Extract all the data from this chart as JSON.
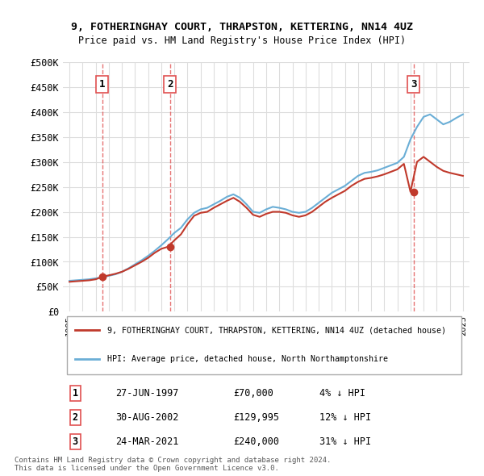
{
  "title": "9, FOTHERINGHAY COURT, THRAPSTON, KETTERING, NN14 4UZ",
  "subtitle": "Price paid vs. HM Land Registry's House Price Index (HPI)",
  "ylabel": "",
  "ylim": [
    0,
    500000
  ],
  "yticks": [
    0,
    50000,
    100000,
    150000,
    200000,
    250000,
    300000,
    350000,
    400000,
    450000,
    500000
  ],
  "ytick_labels": [
    "£0",
    "£50K",
    "£100K",
    "£150K",
    "£200K",
    "£250K",
    "£300K",
    "£350K",
    "£400K",
    "£450K",
    "£500K"
  ],
  "xlim_start": 1994.5,
  "xlim_end": 2025.5,
  "hpi_color": "#6aaed6",
  "price_color": "#c0392b",
  "sale_marker_color": "#c0392b",
  "vline_color": "#e05050",
  "bg_color": "#ffffff",
  "grid_color": "#dddddd",
  "sales": [
    {
      "num": 1,
      "year": 1997.49,
      "price": 70000,
      "label": "27-JUN-1997",
      "price_label": "£70,000",
      "hpi_label": "4% ↓ HPI"
    },
    {
      "num": 2,
      "year": 2002.66,
      "price": 129995,
      "label": "30-AUG-2002",
      "price_label": "£129,995",
      "hpi_label": "12% ↓ HPI"
    },
    {
      "num": 3,
      "year": 2021.23,
      "price": 240000,
      "label": "24-MAR-2021",
      "price_label": "£240,000",
      "hpi_label": "31% ↓ HPI"
    }
  ],
  "legend_line1": "9, FOTHERINGHAY COURT, THRAPSTON, KETTERING, NN14 4UZ (detached house)",
  "legend_line2": "HPI: Average price, detached house, North Northamptonshire",
  "footer1": "Contains HM Land Registry data © Crown copyright and database right 2024.",
  "footer2": "This data is licensed under the Open Government Licence v3.0.",
  "hpi_data_x": [
    1995,
    1995.5,
    1996,
    1996.5,
    1997,
    1997.5,
    1998,
    1998.5,
    1999,
    1999.5,
    2000,
    2000.5,
    2001,
    2001.5,
    2002,
    2002.5,
    2003,
    2003.5,
    2004,
    2004.5,
    2005,
    2005.5,
    2006,
    2006.5,
    2007,
    2007.5,
    2008,
    2008.5,
    2009,
    2009.5,
    2010,
    2010.5,
    2011,
    2011.5,
    2012,
    2012.5,
    2013,
    2013.5,
    2014,
    2014.5,
    2015,
    2015.5,
    2016,
    2016.5,
    2017,
    2017.5,
    2018,
    2018.5,
    2019,
    2019.5,
    2020,
    2020.5,
    2021,
    2021.5,
    2022,
    2022.5,
    2023,
    2023.5,
    2024,
    2024.5,
    2025
  ],
  "hpi_data_y": [
    62000,
    63000,
    64000,
    65000,
    67000,
    69000,
    72000,
    75000,
    80000,
    87000,
    95000,
    103000,
    112000,
    122000,
    133000,
    145000,
    158000,
    168000,
    185000,
    198000,
    205000,
    208000,
    215000,
    222000,
    230000,
    235000,
    228000,
    215000,
    200000,
    198000,
    205000,
    210000,
    208000,
    205000,
    200000,
    198000,
    200000,
    208000,
    218000,
    228000,
    238000,
    245000,
    252000,
    262000,
    272000,
    278000,
    280000,
    283000,
    288000,
    293000,
    298000,
    310000,
    345000,
    370000,
    390000,
    395000,
    385000,
    375000,
    380000,
    388000,
    395000
  ],
  "price_data_x": [
    1995,
    1995.5,
    1996,
    1996.5,
    1997,
    1997.5,
    1998,
    1998.5,
    1999,
    1999.5,
    2000,
    2000.5,
    2001,
    2001.5,
    2002,
    2002.5,
    2003,
    2003.5,
    2004,
    2004.5,
    2005,
    2005.5,
    2006,
    2006.5,
    2007,
    2007.5,
    2008,
    2008.5,
    2009,
    2009.5,
    2010,
    2010.5,
    2011,
    2011.5,
    2012,
    2012.5,
    2013,
    2013.5,
    2014,
    2014.5,
    2015,
    2015.5,
    2016,
    2016.5,
    2017,
    2017.5,
    2018,
    2018.5,
    2019,
    2019.5,
    2020,
    2020.5,
    2021,
    2021.5,
    2022,
    2022.5,
    2023,
    2023.5,
    2024,
    2024.5,
    2025
  ],
  "price_data_y": [
    60000,
    61000,
    62000,
    63000,
    65000,
    70000,
    73000,
    76000,
    80000,
    86000,
    93000,
    100000,
    108000,
    118000,
    126000,
    130000,
    143000,
    155000,
    175000,
    192000,
    198000,
    200000,
    208000,
    215000,
    222000,
    228000,
    220000,
    208000,
    194000,
    190000,
    196000,
    200000,
    200000,
    198000,
    193000,
    190000,
    193000,
    200000,
    210000,
    220000,
    228000,
    235000,
    242000,
    252000,
    260000,
    266000,
    268000,
    271000,
    275000,
    280000,
    285000,
    296000,
    240000,
    300000,
    310000,
    300000,
    290000,
    282000,
    278000,
    275000,
    272000
  ]
}
